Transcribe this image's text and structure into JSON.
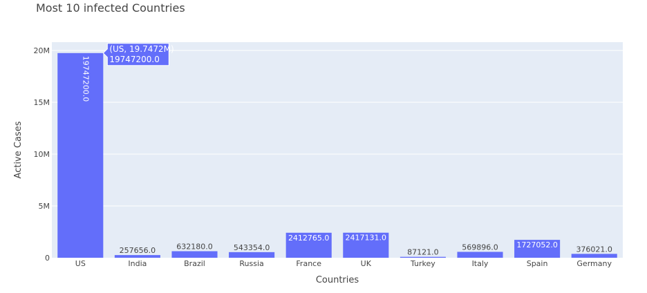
{
  "chart_data": {
    "type": "bar",
    "title": "Most 10 infected Countries",
    "xlabel": "Countries",
    "ylabel": "Active Cases",
    "categories": [
      "US",
      "India",
      "Brazil",
      "Russia",
      "France",
      "UK",
      "Turkey",
      "Italy",
      "Spain",
      "Germany"
    ],
    "values": [
      19747200,
      257656,
      632180,
      543354,
      2412765,
      2417131,
      87121,
      569896,
      1727052,
      376021
    ],
    "data_labels": [
      "19747200.0",
      "257656.0",
      "632180.0",
      "543354.0",
      "2412765.0",
      "2417131.0",
      "87121.0",
      "569896.0",
      "1727052.0",
      "376021.0"
    ],
    "ylim": [
      0,
      20800000
    ],
    "yticks": [
      0,
      5000000,
      10000000,
      15000000,
      20000000
    ],
    "ytick_labels": [
      "0",
      "5M",
      "10M",
      "15M",
      "20M"
    ],
    "grid": true,
    "bar_color": "#636efa",
    "plot_bg": "#e5ecf6",
    "tooltip": {
      "category": "US",
      "line1": "(US, 19.7472M)",
      "line2": "19747200.0"
    }
  }
}
